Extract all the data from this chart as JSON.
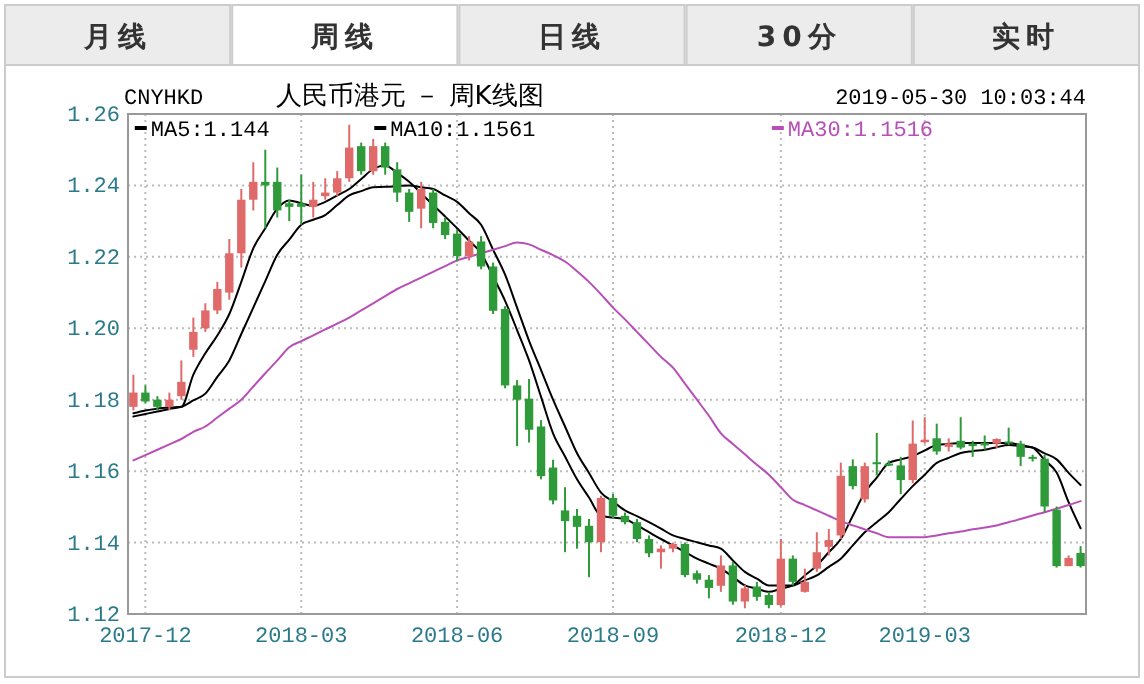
{
  "chart_data": {
    "type": "candlestick",
    "title": "人民币港元 － 周K线图",
    "annotations": [
      "月线",
      "周线",
      "日线",
      "30分",
      "实时",
      "CNYHKD",
      "2019-05-30 10:03:44"
    ],
    "categories": [
      null,
      "2017-12",
      null,
      null,
      null,
      null,
      null,
      null,
      null,
      null,
      null,
      null,
      null,
      null,
      "2018-03",
      null,
      null,
      null,
      null,
      null,
      null,
      null,
      null,
      null,
      null,
      null,
      null,
      "2018-06",
      null,
      null,
      null,
      null,
      null,
      null,
      null,
      null,
      null,
      null,
      null,
      null,
      "2018-09",
      null,
      null,
      null,
      null,
      null,
      null,
      null,
      null,
      null,
      null,
      null,
      null,
      null,
      "2018-12",
      null,
      null,
      null,
      null,
      null,
      null,
      null,
      null,
      null,
      null,
      null,
      "2019-03",
      null,
      null,
      null,
      null,
      null,
      null,
      null,
      null,
      null,
      null,
      null,
      null,
      null
    ],
    "ohlc": [
      [
        1.178,
        1.187,
        1.177,
        1.182
      ],
      [
        1.182,
        1.184,
        1.179,
        1.1795
      ],
      [
        1.18,
        1.181,
        1.177,
        1.178
      ],
      [
        1.178,
        1.182,
        1.177,
        1.18
      ],
      [
        1.181,
        1.191,
        1.18,
        1.185
      ],
      [
        1.194,
        1.203,
        1.192,
        1.199
      ],
      [
        1.2,
        1.207,
        1.199,
        1.205
      ],
      [
        1.205,
        1.213,
        1.204,
        1.211
      ],
      [
        1.21,
        1.225,
        1.208,
        1.221
      ],
      [
        1.221,
        1.239,
        1.217,
        1.236
      ],
      [
        1.236,
        1.2465,
        1.233,
        1.241
      ],
      [
        1.241,
        1.25,
        1.228,
        1.24
      ],
      [
        1.241,
        1.245,
        1.231,
        1.233
      ],
      [
        1.235,
        1.236,
        1.23,
        1.234
      ],
      [
        1.235,
        1.243,
        1.229,
        1.234
      ],
      [
        1.234,
        1.241,
        1.231,
        1.236
      ],
      [
        1.237,
        1.242,
        1.236,
        1.238
      ],
      [
        1.238,
        1.244,
        1.237,
        1.242
      ],
      [
        1.242,
        1.257,
        1.241,
        1.2506
      ],
      [
        1.251,
        1.252,
        1.243,
        1.244
      ],
      [
        1.244,
        1.253,
        1.243,
        1.251
      ],
      [
        1.251,
        1.252,
        1.243,
        1.245
      ],
      [
        1.2445,
        1.2465,
        1.2354,
        1.238
      ],
      [
        1.238,
        1.239,
        1.2298,
        1.2326
      ],
      [
        1.2335,
        1.241,
        1.228,
        1.239
      ],
      [
        1.238,
        1.239,
        1.228,
        1.2295
      ],
      [
        1.2298,
        1.231,
        1.225,
        1.2261
      ],
      [
        1.2265,
        1.2276,
        1.2187,
        1.2202
      ],
      [
        1.2202,
        1.2258,
        1.219,
        1.2243
      ],
      [
        1.2243,
        1.2258,
        1.2165,
        1.2173
      ],
      [
        1.2173,
        1.2184,
        1.204,
        1.2049
      ],
      [
        1.2054,
        1.2062,
        1.1832,
        1.184
      ],
      [
        1.184,
        1.1855,
        1.167,
        1.18
      ],
      [
        1.1803,
        1.1858,
        1.168,
        1.1716
      ],
      [
        1.1725,
        1.1743,
        1.1577,
        1.1586
      ],
      [
        1.161,
        1.1632,
        1.1507,
        1.1518
      ],
      [
        1.149,
        1.1555,
        1.1373,
        1.146
      ],
      [
        1.1475,
        1.1494,
        1.1383,
        1.1444
      ],
      [
        1.1447,
        1.1466,
        1.1303,
        1.1401
      ],
      [
        1.1401,
        1.1531,
        1.1373,
        1.1525
      ],
      [
        1.1525,
        1.1536,
        1.1466,
        1.1475
      ],
      [
        1.1475,
        1.1484,
        1.1451,
        1.1457
      ],
      [
        1.1457,
        1.1466,
        1.1401,
        1.141
      ],
      [
        1.141,
        1.142,
        1.1359,
        1.137
      ],
      [
        1.1373,
        1.1392,
        1.1327,
        1.1383
      ],
      [
        1.1383,
        1.14,
        1.1373,
        1.1396
      ],
      [
        1.1396,
        1.14,
        1.1303,
        1.1309
      ],
      [
        1.1314,
        1.1322,
        1.1285,
        1.1296
      ],
      [
        1.1296,
        1.1309,
        1.1244,
        1.1273
      ],
      [
        1.1279,
        1.1364,
        1.1262,
        1.1336
      ],
      [
        1.1336,
        1.1346,
        1.1226,
        1.1235
      ],
      [
        1.1235,
        1.1281,
        1.1216,
        1.1272
      ],
      [
        1.1277,
        1.129,
        1.1237,
        1.1248
      ],
      [
        1.1253,
        1.1262,
        1.1216,
        1.1225
      ],
      [
        1.1225,
        1.141,
        1.1221,
        1.1355
      ],
      [
        1.1355,
        1.1364,
        1.128,
        1.129
      ],
      [
        1.1262,
        1.1327,
        1.126,
        1.129
      ],
      [
        1.1327,
        1.1429,
        1.1318,
        1.1373
      ],
      [
        1.1388,
        1.1438,
        1.1364,
        1.1407
      ],
      [
        1.142,
        1.1624,
        1.141,
        1.1587
      ],
      [
        1.1614,
        1.1633,
        1.1549,
        1.1558
      ],
      [
        1.1521,
        1.1624,
        1.1512,
        1.1614
      ],
      [
        1.1625,
        1.1707,
        1.1588,
        1.1622
      ],
      [
        1.1621,
        1.163,
        1.1614,
        1.162
      ],
      [
        1.1616,
        1.164,
        1.1536,
        1.1575
      ],
      [
        1.1575,
        1.1742,
        1.1566,
        1.1677
      ],
      [
        1.1681,
        1.1751,
        1.1677,
        1.1688
      ],
      [
        1.1692,
        1.1733,
        1.1646,
        1.1655
      ],
      [
        1.1668,
        1.1692,
        1.1655,
        1.1677
      ],
      [
        1.1685,
        1.1751,
        1.1661,
        1.1666
      ],
      [
        1.1677,
        1.1685,
        1.164,
        1.167
      ],
      [
        1.1679,
        1.17,
        1.166,
        1.1672
      ],
      [
        1.1677,
        1.1692,
        1.1664,
        1.169
      ],
      [
        1.1683,
        1.1722,
        1.1673,
        1.1681
      ],
      [
        1.1677,
        1.1685,
        1.1614,
        1.164
      ],
      [
        1.164,
        1.1646,
        1.1627,
        1.1638
      ],
      [
        1.1635,
        1.1646,
        1.1484,
        1.1501
      ],
      [
        1.1492,
        1.1501,
        1.133,
        1.1334
      ],
      [
        1.1334,
        1.1364,
        1.1334,
        1.1357
      ],
      [
        1.1371,
        1.139,
        1.133,
        1.1334
      ]
    ],
    "colors": [
      "#e06a6a",
      "#2e9a3a",
      "#2e9a3a",
      "#e06a6a",
      "#e06a6a",
      "#e06a6a",
      "#e06a6a",
      "#e06a6a",
      "#e06a6a",
      "#e06a6a",
      "#e06a6a",
      "#2e9a3a",
      "#2e9a3a",
      "#2e9a3a",
      "#2e9a3a",
      "#e06a6a",
      "#e06a6a",
      "#e06a6a",
      "#e06a6a",
      "#2e9a3a",
      "#e06a6a",
      "#2e9a3a",
      "#2e9a3a",
      "#2e9a3a",
      "#e06a6a",
      "#2e9a3a",
      "#2e9a3a",
      "#2e9a3a",
      "#e06a6a",
      "#2e9a3a",
      "#2e9a3a",
      "#2e9a3a",
      "#2e9a3a",
      "#2e9a3a",
      "#2e9a3a",
      "#2e9a3a",
      "#2e9a3a",
      "#2e9a3a",
      "#2e9a3a",
      "#e06a6a",
      "#2e9a3a",
      "#2e9a3a",
      "#2e9a3a",
      "#2e9a3a",
      "#e06a6a",
      "#e06a6a",
      "#2e9a3a",
      "#2e9a3a",
      "#2e9a3a",
      "#e06a6a",
      "#2e9a3a",
      "#e06a6a",
      "#2e9a3a",
      "#2e9a3a",
      "#e06a6a",
      "#2e9a3a",
      "#e06a6a",
      "#e06a6a",
      "#e06a6a",
      "#e06a6a",
      "#2e9a3a",
      "#e06a6a",
      "#2e9a3a",
      "#2e9a3a",
      "#2e9a3a",
      "#e06a6a",
      "#e06a6a",
      "#2e9a3a",
      "#e06a6a",
      "#2e9a3a",
      "#2e9a3a",
      "#2e9a3a",
      "#e06a6a",
      "#2e9a3a",
      "#2e9a3a",
      "#2e9a3a",
      "#2e9a3a",
      "#2e9a3a",
      "#e06a6a",
      "#2e9a3a"
    ],
    "series": [
      {
        "name": "MA5:1.144",
        "type": "line",
        "color": "#000000",
        "values": [
          1.1762,
          1.177,
          1.1775,
          1.1778,
          1.178,
          1.187,
          1.193,
          1.198,
          1.204,
          1.213,
          1.2224,
          1.228,
          1.2335,
          1.2358,
          1.235,
          1.2343,
          1.2354,
          1.2372,
          1.239,
          1.2418,
          1.2446,
          1.2456,
          1.2435,
          1.241,
          1.2378,
          1.2345,
          1.2313,
          1.228,
          1.2245,
          1.221,
          1.2145,
          1.2077,
          1.1995,
          1.191,
          1.1808,
          1.1706,
          1.1641,
          1.1577,
          1.1526,
          1.1475,
          1.147,
          1.1466,
          1.1448,
          1.1429,
          1.141,
          1.1392,
          1.1374,
          1.1355,
          1.1341,
          1.1327,
          1.1304,
          1.128,
          1.1271,
          1.1262,
          1.1271,
          1.128,
          1.1308,
          1.1336,
          1.1373,
          1.141,
          1.1475,
          1.154,
          1.1582,
          1.1623,
          1.1633,
          1.1642,
          1.1658,
          1.1673,
          1.1676,
          1.1679,
          1.1679,
          1.1679,
          1.1679,
          1.1679,
          1.1673,
          1.1666,
          1.1631,
          1.1596,
          1.1513,
          1.144
        ]
      },
      {
        "name": "MA10:1.1561",
        "type": "line",
        "color": "#000000",
        "values": [
          1.1753,
          1.176,
          1.1767,
          1.1774,
          1.178,
          1.1798,
          1.1817,
          1.1864,
          1.191,
          1.1984,
          1.2058,
          1.2132,
          1.2206,
          1.2248,
          1.229,
          1.2304,
          1.2317,
          1.2345,
          1.2372,
          1.2384,
          1.2395,
          1.2396,
          1.2398,
          1.24,
          1.2395,
          1.239,
          1.2372,
          1.2354,
          1.2322,
          1.229,
          1.222,
          1.215,
          1.2058,
          1.1965,
          1.1883,
          1.18,
          1.1725,
          1.165,
          1.1595,
          1.154,
          1.1515,
          1.149,
          1.1474,
          1.1457,
          1.1439,
          1.142,
          1.141,
          1.1401,
          1.1392,
          1.1383,
          1.135,
          1.1318,
          1.1299,
          1.128,
          1.128,
          1.128,
          1.1294,
          1.1308,
          1.1332,
          1.1355,
          1.1392,
          1.1429,
          1.1457,
          1.1485,
          1.1522,
          1.1558,
          1.159,
          1.1623,
          1.1637,
          1.1651,
          1.1656,
          1.166,
          1.1667,
          1.1673,
          1.167,
          1.1666,
          1.165,
          1.1633,
          1.1595,
          1.1561
        ]
      },
      {
        "name": "MA30:1.1516",
        "type": "line",
        "color": "#b84fb8",
        "values": [
          1.163,
          1.1645,
          1.166,
          1.1675,
          1.169,
          1.171,
          1.1725,
          1.175,
          1.1775,
          1.18,
          1.1837,
          1.1874,
          1.191,
          1.1947,
          1.1964,
          1.198,
          1.1997,
          1.2013,
          1.203,
          1.205,
          1.207,
          1.209,
          1.211,
          1.2126,
          1.2142,
          1.2158,
          1.2174,
          1.219,
          1.22,
          1.221,
          1.222,
          1.223,
          1.224,
          1.2235,
          1.222,
          1.2205,
          1.2187,
          1.216,
          1.213,
          1.2095,
          1.2058,
          1.2025,
          1.199,
          1.1955,
          1.192,
          1.189,
          1.1845,
          1.18,
          1.1755,
          1.1706,
          1.1676,
          1.1647,
          1.1618,
          1.159,
          1.1555,
          1.152,
          1.1505,
          1.149,
          1.1475,
          1.146,
          1.1448,
          1.1437,
          1.1426,
          1.1415,
          1.1415,
          1.1415,
          1.1415,
          1.142,
          1.1426,
          1.1431,
          1.1437,
          1.1442,
          1.1448,
          1.1457,
          1.1466,
          1.1476,
          1.1485,
          1.1495,
          1.1505,
          1.1516
        ]
      }
    ],
    "ylim": [
      1.12,
      1.26
    ],
    "yticks": [
      1.12,
      1.14,
      1.16,
      1.18,
      {
        "value": 1.2,
        "label": "1.20"
      },
      1.22,
      1.24,
      1.26
    ],
    "grid": true,
    "legend": "top left"
  }
}
